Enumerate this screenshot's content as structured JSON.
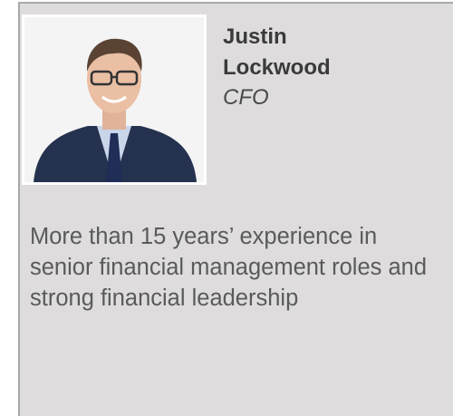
{
  "profile": {
    "name": "Justin Lockwood",
    "role": "CFO",
    "description": "More than 15 years’ experience in senior financial management roles and strong financial leadership"
  }
}
